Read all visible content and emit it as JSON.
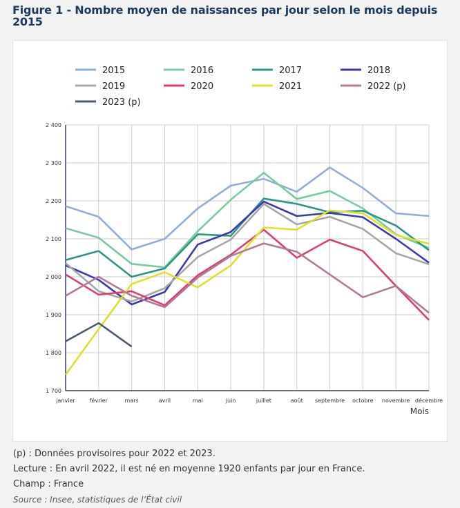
{
  "title": "Figure 1 - Nombre moyen de naissances par jour selon le mois depuis 2015",
  "notes": {
    "provisional": "(p) : Données provisoires pour 2022 et 2023.",
    "reading": "Lecture : En avril 2022, il est né en moyenne 1920 enfants par jour en France.",
    "scope": "Champ : France",
    "source": "Source : Insee, statistiques de l’État civil"
  },
  "chart_data": {
    "type": "line",
    "title": "Figure 1 - Nombre moyen de naissances par jour selon le mois depuis 2015",
    "xlabel": "Mois",
    "ylabel": "",
    "ylim": [
      1700,
      2400
    ],
    "yticks": [
      1700,
      1800,
      1900,
      2000,
      2100,
      2200,
      2300,
      2400
    ],
    "ytick_labels": [
      "1 700",
      "1 800",
      "1 900",
      "2 000",
      "2 100",
      "2 200",
      "2 300",
      "2 400"
    ],
    "grid": true,
    "legend_position": "top",
    "categories": [
      "janvier",
      "février",
      "mars",
      "avril",
      "mai",
      "juin",
      "juillet",
      "août",
      "septembre",
      "octobre",
      "novembre",
      "décembre"
    ],
    "series": [
      {
        "name": "2015",
        "color": "#92add6",
        "values": [
          2186,
          2158,
          2072,
          2100,
          2180,
          2240,
          2258,
          2224,
          2288,
          2234,
          2167,
          2160
        ]
      },
      {
        "name": "2016",
        "color": "#7ccba0",
        "values": [
          2128,
          2103,
          2034,
          2025,
          2120,
          2203,
          2274,
          2205,
          2226,
          2180,
          2112,
          2076
        ]
      },
      {
        "name": "2017",
        "color": "#2f9488",
        "values": [
          2044,
          2068,
          2000,
          2022,
          2112,
          2108,
          2206,
          2192,
          2170,
          2174,
          2135,
          2070
        ]
      },
      {
        "name": "2018",
        "color": "#3a3ab0",
        "values": [
          2030,
          1992,
          1927,
          1960,
          2085,
          2118,
          2198,
          2160,
          2168,
          2157,
          2100,
          2037
        ]
      },
      {
        "name": "2019",
        "color": "#a6a6a6",
        "values": [
          2036,
          1962,
          1935,
          1970,
          2052,
          2098,
          2192,
          2138,
          2158,
          2126,
          2062,
          2033
        ]
      },
      {
        "name": "2020",
        "color": "#d94070",
        "values": [
          2006,
          1953,
          1962,
          1925,
          2004,
          2058,
          2124,
          2050,
          2098,
          2068,
          1976,
          1886
        ]
      },
      {
        "name": "2021",
        "color": "#e0e02a",
        "values": [
          1742,
          1862,
          1981,
          2012,
          1972,
          2030,
          2130,
          2124,
          2175,
          2167,
          2110,
          2087
        ]
      },
      {
        "name": "2022 (p)",
        "color": "#b07a9a",
        "values": [
          1950,
          2000,
          1950,
          1920,
          1998,
          2055,
          2088,
          2066,
          2006,
          1946,
          1976,
          1905
        ]
      },
      {
        "name": "2023 (p)",
        "color": "#4a5a72",
        "values": [
          1830,
          1878,
          1816,
          null,
          null,
          null,
          null,
          null,
          null,
          null,
          null,
          null
        ]
      }
    ]
  }
}
